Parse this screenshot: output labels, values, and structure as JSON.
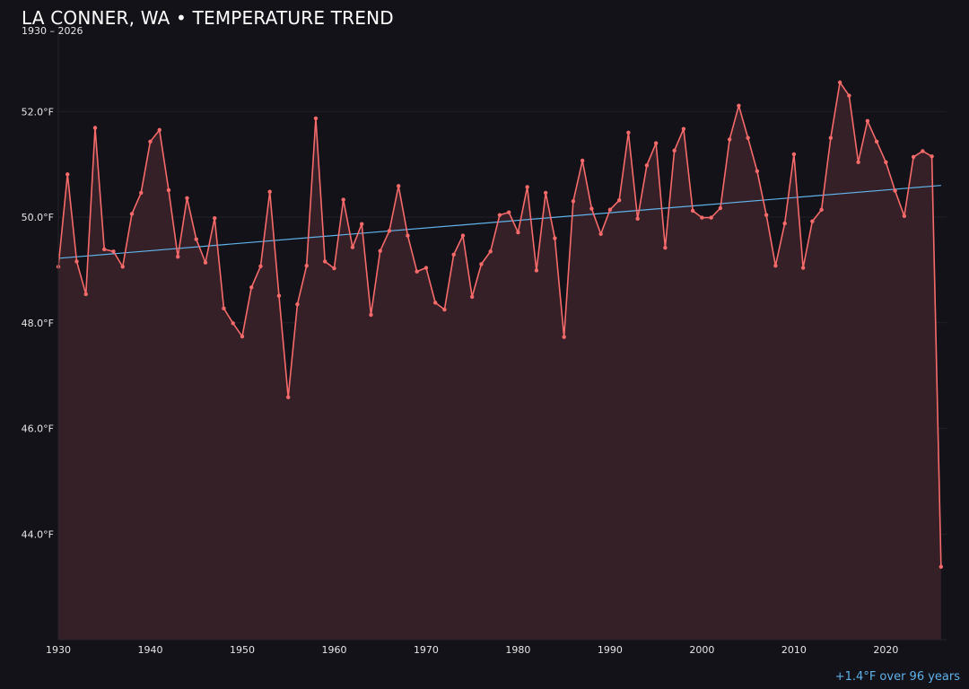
{
  "header": {
    "title": "LA CONNER, WA • TEMPERATURE TREND",
    "subtitle": "1930 – 2026"
  },
  "footnote": "+1.4°F over 96 years",
  "colors": {
    "background": "#131218",
    "line": "#f76a6a",
    "area": "#352027",
    "trend": "#5fb2ea",
    "text": "#e6e6e6"
  },
  "chart_data": {
    "type": "area",
    "title": "LA CONNER, WA • TEMPERATURE TREND",
    "subtitle": "1930 – 2026",
    "x_ticks": [
      "1930",
      "1940",
      "1950",
      "1960",
      "1970",
      "1980",
      "1990",
      "2000",
      "2010",
      "2020"
    ],
    "y_ticks": [
      "44.0°F",
      "46.0°F",
      "48.0°F",
      "50.0°F",
      "52.0°F"
    ],
    "xlim": [
      1930,
      2026.6
    ],
    "ylim": [
      42.0,
      53.55
    ],
    "grid": "horizontal",
    "x": [
      1930,
      1931,
      1932,
      1933,
      1934,
      1935,
      1936,
      1937,
      1938,
      1939,
      1940,
      1941,
      1942,
      1943,
      1944,
      1945,
      1946,
      1947,
      1948,
      1949,
      1950,
      1951,
      1952,
      1953,
      1954,
      1955,
      1956,
      1957,
      1958,
      1959,
      1960,
      1961,
      1962,
      1963,
      1964,
      1965,
      1966,
      1967,
      1968,
      1969,
      1970,
      1971,
      1972,
      1973,
      1974,
      1975,
      1976,
      1977,
      1978,
      1979,
      1980,
      1981,
      1982,
      1983,
      1984,
      1985,
      1986,
      1987,
      1988,
      1989,
      1990,
      1991,
      1992,
      1993,
      1994,
      1995,
      1996,
      1997,
      1998,
      1999,
      2000,
      2001,
      2002,
      2003,
      2004,
      2005,
      2006,
      2007,
      2008,
      2009,
      2010,
      2011,
      2012,
      2013,
      2014,
      2015,
      2016,
      2017,
      2018,
      2019,
      2020,
      2021,
      2022,
      2023,
      2024,
      2025,
      2026
    ],
    "series": [
      {
        "values": [
          49.06,
          50.81,
          49.16,
          48.54,
          51.69,
          49.39,
          49.35,
          49.06,
          50.06,
          50.46,
          51.43,
          51.65,
          50.51,
          49.25,
          50.36,
          49.58,
          49.14,
          49.98,
          48.27,
          47.99,
          47.74,
          48.67,
          49.07,
          50.48,
          48.51,
          46.59,
          48.35,
          49.08,
          51.87,
          49.16,
          49.03,
          50.33,
          49.43,
          49.87,
          48.15,
          49.36,
          49.74,
          50.59,
          49.65,
          48.97,
          49.04,
          48.38,
          48.25,
          49.29,
          49.65,
          48.49,
          49.11,
          49.35,
          50.04,
          50.09,
          49.71,
          50.57,
          48.99,
          50.46,
          49.6,
          47.73,
          50.3,
          51.07,
          50.16,
          49.68,
          50.14,
          50.32,
          51.6,
          49.97,
          50.98,
          51.4,
          49.42,
          51.26,
          51.67,
          50.12,
          49.99,
          49.99,
          50.17,
          51.47,
          52.11,
          51.5,
          50.87,
          50.04,
          49.08,
          49.88,
          51.19,
          49.04,
          49.92,
          50.14,
          51.5,
          52.55,
          52.3,
          51.04,
          51.82,
          51.43,
          51.04,
          50.5,
          50.02,
          51.14,
          51.25,
          51.15,
          43.38
        ]
      }
    ],
    "trend": {
      "start": [
        1930,
        49.22
      ],
      "end": [
        2026,
        50.6
      ]
    }
  }
}
